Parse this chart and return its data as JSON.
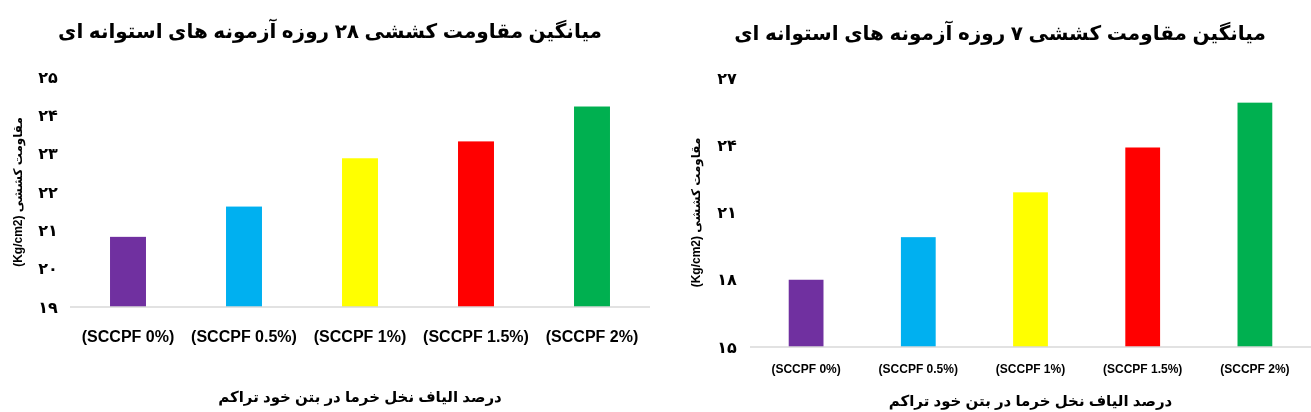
{
  "chart_data": [
    {
      "type": "bar",
      "title": "میانگین مقاومت کششی ۲۸ روزه آزمونه های استوانه ای",
      "xlabel": "درصد الیاف نخل خرما در بتن خود تراکم",
      "ylabel": "مقاومت کششی (Kg/cm2)",
      "categories": [
        "(SCCPF 0%)",
        "(SCCPF 0.5%)",
        "(SCCPF 1%)",
        "(SCCPF 1.5%)",
        "(SCCPF 2%)"
      ],
      "values": [
        20.83,
        21.62,
        22.88,
        23.32,
        24.23
      ],
      "colors": [
        "#7030a0",
        "#00b0f0",
        "#ffff00",
        "#ff0000",
        "#00b050"
      ],
      "ylim": [
        19,
        25
      ],
      "yticks": [
        {
          "value": 19,
          "label": "۱۹"
        },
        {
          "value": 20,
          "label": "۲۰"
        },
        {
          "value": 21,
          "label": "۲۱"
        },
        {
          "value": 22,
          "label": "۲۲"
        },
        {
          "value": 23,
          "label": "۲۳"
        },
        {
          "value": 24,
          "label": "۲۴"
        },
        {
          "value": 25,
          "label": "۲۵"
        }
      ]
    },
    {
      "type": "bar",
      "title": "میانگین مقاومت کششی ۷ روزه آزمونه های استوانه ای",
      "xlabel": "درصد الیاف نخل خرما در بتن خود تراکم",
      "ylabel": "مقاومت کششی (Kg/cm2)",
      "categories": [
        "(SCCPF 0%)",
        "(SCCPF 0.5%)",
        "(SCCPF 1%)",
        "(SCCPF 1.5%)",
        "(SCCPF 2%)"
      ],
      "values": [
        18.0,
        19.9,
        21.9,
        23.9,
        25.9
      ],
      "colors": [
        "#7030a0",
        "#00b0f0",
        "#ffff00",
        "#ff0000",
        "#00b050"
      ],
      "ylim": [
        15,
        27
      ],
      "yticks": [
        {
          "value": 15,
          "label": "۱۵"
        },
        {
          "value": 18,
          "label": "۱۸"
        },
        {
          "value": 21,
          "label": "۲۱"
        },
        {
          "value": 24,
          "label": "۲۴"
        },
        {
          "value": 27,
          "label": "۲۷"
        }
      ]
    }
  ]
}
